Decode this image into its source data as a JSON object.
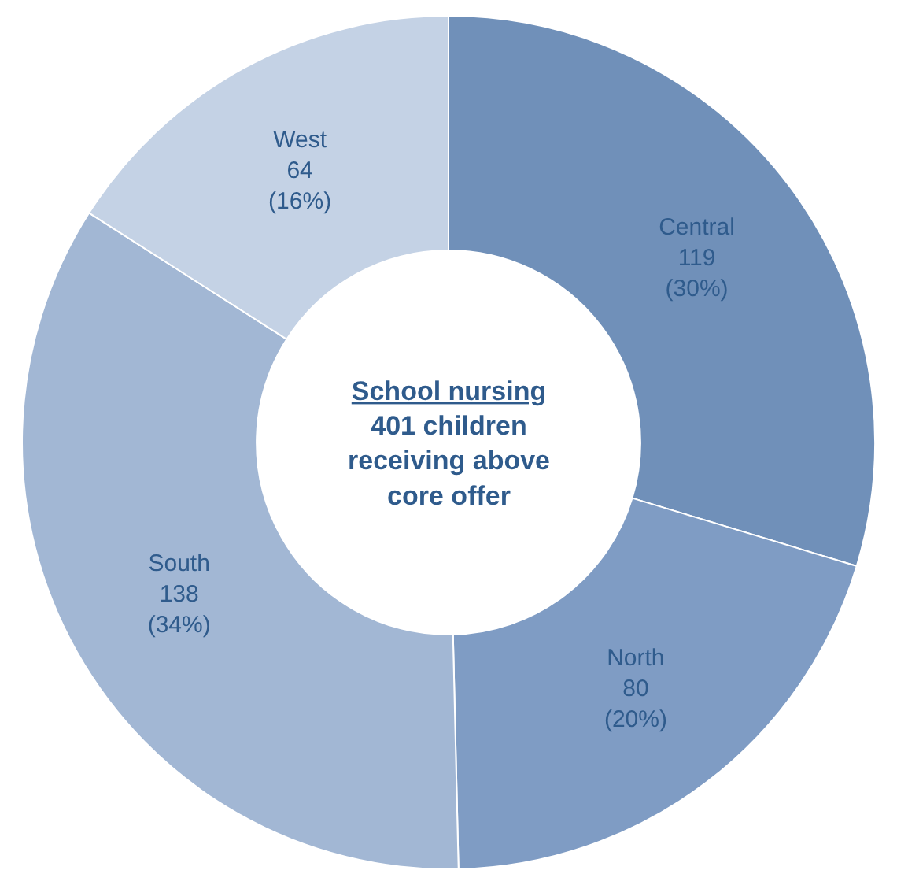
{
  "chart_data": {
    "type": "donut",
    "title": "School nursing",
    "annotations": [
      "401 children receiving above core offer"
    ],
    "categories": [
      "Central",
      "North",
      "South",
      "West"
    ],
    "values": [
      119,
      80,
      138,
      64
    ],
    "value_labels": [
      "119 (30%)",
      "80 (20%)",
      "138 (34%)",
      "64 (16%)"
    ],
    "colors": [
      "#7090b9",
      "#7f9cc4",
      "#a2b7d4",
      "#c4d2e5"
    ],
    "legend": false
  }
}
